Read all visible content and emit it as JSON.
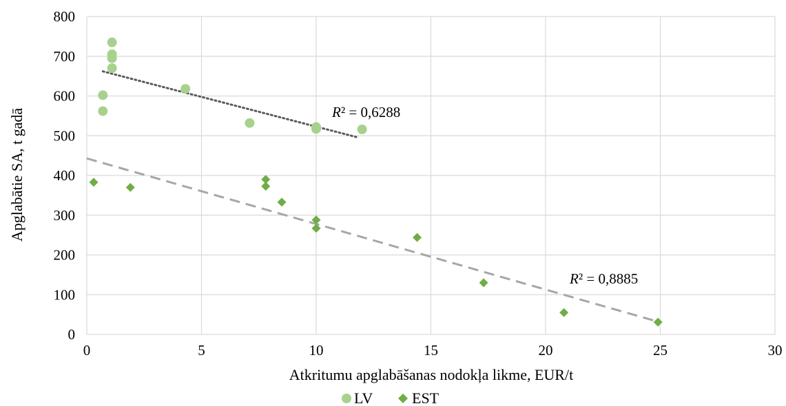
{
  "chart_data": {
    "type": "scatter",
    "xlabel": "Atkritumu apglabāšanas nodokļa likme, EUR/t",
    "ylabel": "Apglabātie SA, t gadā",
    "xlim": [
      0,
      30
    ],
    "ylim": [
      0,
      800
    ],
    "xticks": [
      0,
      5,
      10,
      15,
      20,
      25,
      30
    ],
    "yticks": [
      0,
      100,
      200,
      300,
      400,
      500,
      600,
      700,
      800
    ],
    "grid": "major gridlines on both axes",
    "legend": "bottom-center",
    "series": [
      {
        "name": "LV",
        "marker": "circle",
        "color": "#a9d18e",
        "points": [
          {
            "x": 1.1,
            "y": 735
          },
          {
            "x": 1.1,
            "y": 705
          },
          {
            "x": 1.1,
            "y": 695
          },
          {
            "x": 1.1,
            "y": 670
          },
          {
            "x": 0.7,
            "y": 602
          },
          {
            "x": 0.7,
            "y": 562
          },
          {
            "x": 4.3,
            "y": 618
          },
          {
            "x": 7.1,
            "y": 532
          },
          {
            "x": 10.0,
            "y": 522
          },
          {
            "x": 10.0,
            "y": 517
          },
          {
            "x": 12.0,
            "y": 516
          }
        ],
        "trendline": {
          "style": "dotted",
          "color": "#595959",
          "x": [
            0.7,
            11.8
          ],
          "y": [
            662,
            496
          ],
          "r2_label": {
            "pre": "R",
            "post": "² = 0,6288"
          }
        }
      },
      {
        "name": "EST",
        "marker": "diamond",
        "color": "#70ad47",
        "points": [
          {
            "x": 0.3,
            "y": 383
          },
          {
            "x": 1.9,
            "y": 370
          },
          {
            "x": 7.8,
            "y": 390
          },
          {
            "x": 7.8,
            "y": 373
          },
          {
            "x": 8.5,
            "y": 333
          },
          {
            "x": 10.0,
            "y": 288
          },
          {
            "x": 10.0,
            "y": 267
          },
          {
            "x": 14.4,
            "y": 244
          },
          {
            "x": 17.3,
            "y": 130
          },
          {
            "x": 20.8,
            "y": 55
          },
          {
            "x": 24.9,
            "y": 31
          }
        ],
        "trendline": {
          "style": "dashed",
          "color": "#a6a6a6",
          "x": [
            0,
            24.9
          ],
          "y": [
            443,
            32
          ],
          "r2_label": {
            "pre": "R",
            "post": "² = 0,8885"
          }
        }
      }
    ]
  }
}
